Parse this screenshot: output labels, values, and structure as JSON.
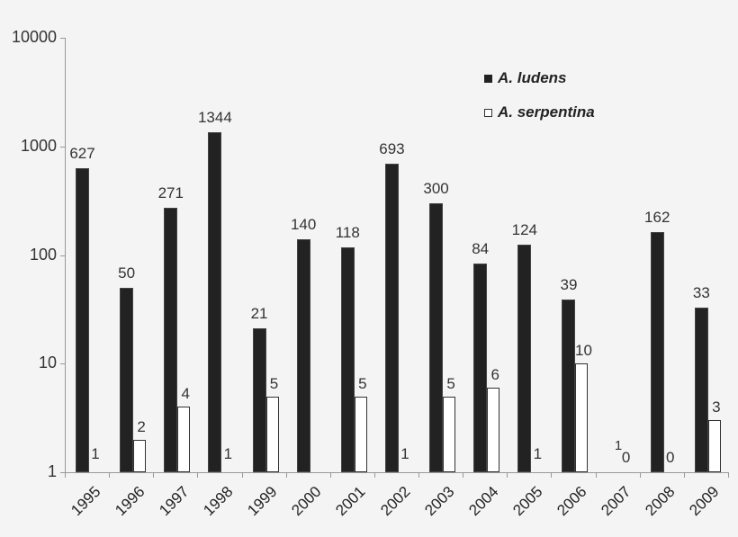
{
  "chart_data": {
    "type": "bar",
    "title": "",
    "xlabel": "",
    "ylabel": "",
    "yscale": "log",
    "ylim": [
      1,
      10000
    ],
    "yticks": [
      1,
      10,
      100,
      1000,
      10000
    ],
    "ytick_labels": [
      "1",
      "10",
      "100",
      "1000",
      "10000"
    ],
    "grid": false,
    "legend_position": "upper right",
    "categories": [
      "1995",
      "1996",
      "1997",
      "1998",
      "1999",
      "2000",
      "2001",
      "2002",
      "2003",
      "2004",
      "2005",
      "2006",
      "2007",
      "2008",
      "2009"
    ],
    "series": [
      {
        "name": "A. ludens",
        "color": "#222222",
        "values": [
          627,
          50,
          271,
          1344,
          21,
          140,
          118,
          693,
          300,
          84,
          124,
          39,
          1,
          162,
          33
        ],
        "labels": [
          "627",
          "50",
          "271",
          "1344",
          "21",
          "140",
          "118",
          "693",
          "300",
          "84",
          "124",
          "39",
          "1",
          "162",
          "33"
        ]
      },
      {
        "name": "A. serpentina",
        "color": "#ffffff",
        "values": [
          1,
          2,
          4,
          1,
          5,
          null,
          5,
          1,
          5,
          6,
          1,
          10,
          0,
          0,
          3
        ],
        "labels": [
          "1",
          "2",
          "4",
          "1",
          "5",
          "",
          "5",
          "1",
          "5",
          "6",
          "1",
          "10",
          "0",
          "0",
          "3"
        ]
      }
    ]
  },
  "legend": {
    "items": [
      {
        "label": "A. ludens",
        "swatch": "dark"
      },
      {
        "label": "A. serpentina",
        "swatch": "white"
      }
    ]
  }
}
